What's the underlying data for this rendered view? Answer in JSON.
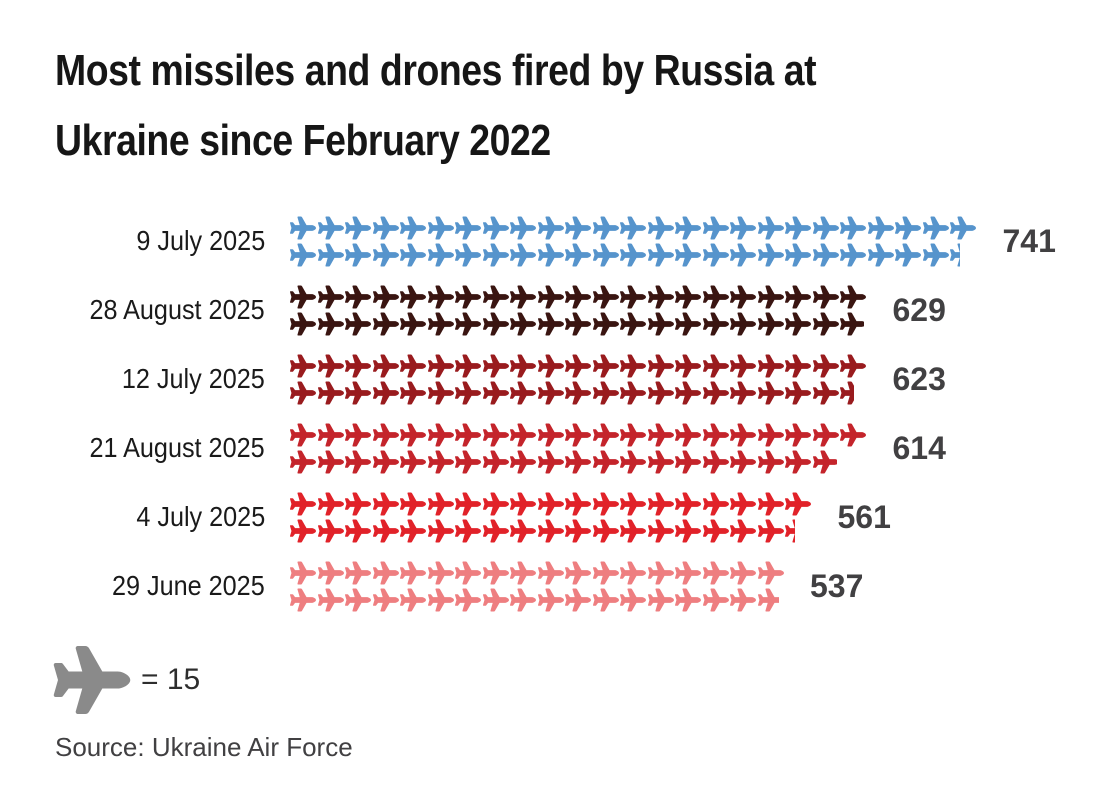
{
  "title": {
    "line1": "Most missiles and drones fired by Russia at",
    "line2": "Ukraine since February 2022"
  },
  "legend": {
    "label": "= 15",
    "icon": "plane-icon",
    "icon_color": "#8a8a8a",
    "units_per_icon": 15
  },
  "source": {
    "text": "Source: Ukraine Air Force"
  },
  "chart_data": {
    "type": "pictogram",
    "title": "Most missiles and drones fired by Russia at Ukraine since February 2022",
    "unit_per_icon": 15,
    "icon": "plane",
    "categories": [
      "9 July 2025",
      "28 August 2025",
      "12 July 2025",
      "21 August 2025",
      "4 July 2025",
      "29 June 2025"
    ],
    "values": [
      741,
      629,
      623,
      614,
      561,
      537
    ],
    "colors": [
      "#5694cc",
      "#3a1511",
      "#991b1e",
      "#c4242b",
      "#e12229",
      "#ee7e80"
    ],
    "value_label_color": "#414042",
    "layout": {
      "lines_per_row": 2,
      "legend_position": "bottom-left",
      "source": "Ukraine Air Force"
    }
  }
}
